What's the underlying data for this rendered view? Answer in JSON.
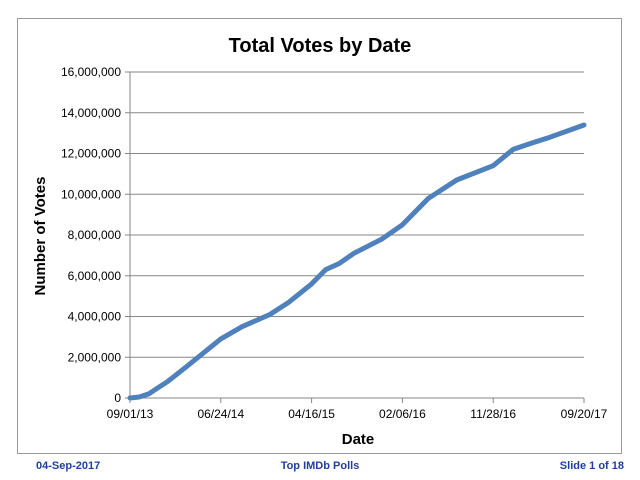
{
  "footer": {
    "date": "04-Sep-2017",
    "title": "Top IMDb Polls",
    "slide": "Slide 1 of 18"
  },
  "colors": {
    "series": "#4f81bd",
    "grid": "#878787",
    "axis": "#878787",
    "footer": "#1f3f9f"
  },
  "chart_data": {
    "type": "line",
    "title": "Total Votes by Date",
    "xlabel": "Date",
    "ylabel": "Number of Votes",
    "xlim": [
      "2013-09-01",
      "2017-09-20"
    ],
    "ylim": [
      0,
      16000000
    ],
    "x_ticks": [
      "09/01/13",
      "06/24/14",
      "04/16/15",
      "02/06/16",
      "11/28/16",
      "09/20/17"
    ],
    "y_ticks": [
      "0",
      "2,000,000",
      "4,000,000",
      "6,000,000",
      "8,000,000",
      "10,000,000",
      "12,000,000",
      "14,000,000",
      "16,000,000"
    ],
    "grid": "horizontal",
    "series": [
      {
        "name": "Total Votes",
        "x": [
          "2013-09-01",
          "2013-10-01",
          "2013-11-01",
          "2013-12-01",
          "2014-01-01",
          "2014-03-01",
          "2014-06-24",
          "2014-09-01",
          "2014-12-01",
          "2015-02-01",
          "2015-04-16",
          "2015-06-01",
          "2015-07-15",
          "2015-09-01",
          "2015-12-01",
          "2016-02-06",
          "2016-05-01",
          "2016-08-01",
          "2016-11-28",
          "2017-02-01",
          "2017-04-01",
          "2017-06-01",
          "2017-09-20"
        ],
        "values": [
          0,
          50000,
          200000,
          500000,
          800000,
          1500000,
          2900000,
          3500000,
          4100000,
          4700000,
          5600000,
          6300000,
          6600000,
          7100000,
          7800000,
          8500000,
          9800000,
          10700000,
          11400000,
          12200000,
          12500000,
          12800000,
          13400000
        ]
      }
    ]
  }
}
